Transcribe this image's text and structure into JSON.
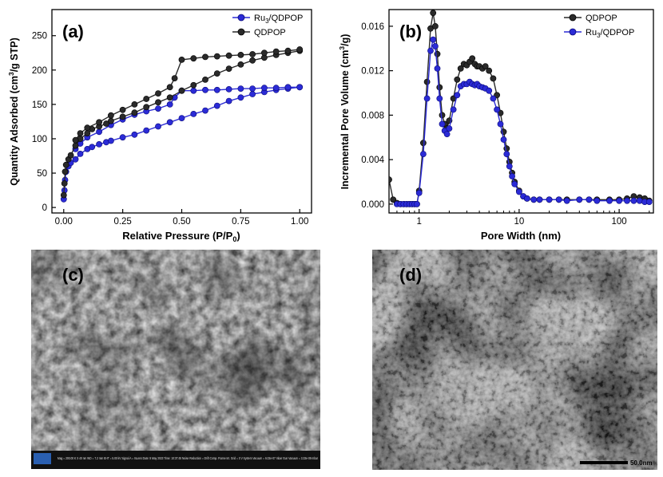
{
  "chart_data": [
    {
      "panel": "(a)",
      "type": "line",
      "xlabel_main": "Relative Pressure (P/P",
      "xlabel_sub": "0",
      "xlabel_end": ")",
      "ylabel_main": "Quantity Adsorbed (cm",
      "ylabel_sup": "3",
      "ylabel_end": "/g STP)",
      "xlim": [
        -0.05,
        1.05
      ],
      "ylim": [
        -8,
        288
      ],
      "xticks": [
        "0.00",
        "0.25",
        "0.50",
        "0.75",
        "1.00"
      ],
      "xtick_values": [
        0,
        0.25,
        0.5,
        0.75,
        1.0
      ],
      "yticks": [
        "0",
        "50",
        "100",
        "150",
        "200",
        "250"
      ],
      "ytick_values": [
        0,
        50,
        100,
        150,
        200,
        250
      ],
      "legend_position": "top-right",
      "series": [
        {
          "name_main": "Ru",
          "name_sub": "3",
          "name_end": "/QDPOP",
          "color": "#2b2bd6",
          "adsorption": [
            [
              0.0,
              12
            ],
            [
              0.003,
              25
            ],
            [
              0.006,
              40
            ],
            [
              0.01,
              52
            ],
            [
              0.02,
              60
            ],
            [
              0.03,
              65
            ],
            [
              0.05,
              70
            ],
            [
              0.07,
              78
            ],
            [
              0.1,
              85
            ],
            [
              0.12,
              88
            ],
            [
              0.15,
              92
            ],
            [
              0.18,
              95
            ],
            [
              0.2,
              97
            ],
            [
              0.25,
              102
            ],
            [
              0.3,
              106
            ],
            [
              0.35,
              112
            ],
            [
              0.4,
              118
            ],
            [
              0.45,
              124
            ],
            [
              0.5,
              130
            ],
            [
              0.55,
              136
            ],
            [
              0.6,
              141
            ],
            [
              0.65,
              148
            ],
            [
              0.7,
              155
            ],
            [
              0.75,
              160
            ],
            [
              0.8,
              165
            ],
            [
              0.85,
              168
            ],
            [
              0.9,
              171
            ],
            [
              0.95,
              173
            ],
            [
              1.0,
              175
            ]
          ],
          "desorption": [
            [
              1.0,
              175
            ],
            [
              0.95,
              175
            ],
            [
              0.9,
              174
            ],
            [
              0.85,
              174
            ],
            [
              0.8,
              173
            ],
            [
              0.75,
              173
            ],
            [
              0.7,
              172
            ],
            [
              0.65,
              171
            ],
            [
              0.6,
              171
            ],
            [
              0.55,
              170
            ],
            [
              0.5,
              170
            ],
            [
              0.47,
              160
            ],
            [
              0.45,
              150
            ],
            [
              0.4,
              144
            ],
            [
              0.35,
              140
            ],
            [
              0.3,
              135
            ],
            [
              0.25,
              128
            ],
            [
              0.2,
              120
            ],
            [
              0.15,
              110
            ],
            [
              0.1,
              102
            ],
            [
              0.07,
              93
            ],
            [
              0.05,
              85
            ]
          ]
        },
        {
          "name_main": "QDPOP",
          "name_sub": "",
          "name_end": "",
          "color": "#2a2a2a",
          "adsorption": [
            [
              0.0,
              18
            ],
            [
              0.003,
              35
            ],
            [
              0.006,
              52
            ],
            [
              0.01,
              62
            ],
            [
              0.02,
              70
            ],
            [
              0.03,
              76
            ],
            [
              0.05,
              90
            ],
            [
              0.07,
              100
            ],
            [
              0.1,
              108
            ],
            [
              0.12,
              114
            ],
            [
              0.15,
              118
            ],
            [
              0.18,
              122
            ],
            [
              0.2,
              126
            ],
            [
              0.25,
              132
            ],
            [
              0.3,
              138
            ],
            [
              0.35,
              146
            ],
            [
              0.4,
              153
            ],
            [
              0.45,
              160
            ],
            [
              0.5,
              170
            ],
            [
              0.55,
              178
            ],
            [
              0.6,
              186
            ],
            [
              0.65,
              195
            ],
            [
              0.7,
              202
            ],
            [
              0.75,
              208
            ],
            [
              0.8,
              214
            ],
            [
              0.85,
              218
            ],
            [
              0.9,
              222
            ],
            [
              0.95,
              225
            ],
            [
              1.0,
              228
            ]
          ],
          "desorption": [
            [
              1.0,
              230
            ],
            [
              0.95,
              228
            ],
            [
              0.9,
              227
            ],
            [
              0.85,
              225
            ],
            [
              0.8,
              223
            ],
            [
              0.75,
              222
            ],
            [
              0.7,
              221
            ],
            [
              0.65,
              220
            ],
            [
              0.6,
              219
            ],
            [
              0.55,
              217
            ],
            [
              0.5,
              215
            ],
            [
              0.47,
              188
            ],
            [
              0.45,
              175
            ],
            [
              0.4,
              166
            ],
            [
              0.35,
              158
            ],
            [
              0.3,
              150
            ],
            [
              0.25,
              142
            ],
            [
              0.2,
              134
            ],
            [
              0.15,
              124
            ],
            [
              0.1,
              116
            ],
            [
              0.07,
              108
            ],
            [
              0.05,
              98
            ]
          ]
        }
      ]
    },
    {
      "panel": "(b)",
      "type": "line",
      "xscale": "log",
      "xlabel": "Pore Width (nm)",
      "ylabel_main": "Incremental Pore Volume (cm",
      "ylabel_sup": "3",
      "ylabel_end": "/g)",
      "xlim": [
        0.5,
        220
      ],
      "ylim": [
        -0.0008,
        0.0175
      ],
      "xticks": [
        "1",
        "10",
        "100"
      ],
      "xtick_values": [
        1,
        10,
        100
      ],
      "yticks": [
        "0.000",
        "0.004",
        "0.008",
        "0.012",
        "0.016"
      ],
      "ytick_values": [
        0,
        0.004,
        0.008,
        0.012,
        0.016
      ],
      "legend_position": "top-right",
      "series": [
        {
          "name_main": "QDPOP",
          "name_sub": "",
          "name_end": "",
          "color": "#2a2a2a",
          "points": [
            [
              0.5,
              0.0022
            ],
            [
              0.55,
              0.0004
            ],
            [
              0.6,
              0.0001
            ],
            [
              0.65,
              0.0
            ],
            [
              0.7,
              0.0
            ],
            [
              0.75,
              0.0
            ],
            [
              0.8,
              0.0
            ],
            [
              0.85,
              0.0
            ],
            [
              0.9,
              0.0
            ],
            [
              0.95,
              0.0
            ],
            [
              1.0,
              0.0012
            ],
            [
              1.1,
              0.0055
            ],
            [
              1.2,
              0.011
            ],
            [
              1.3,
              0.0158
            ],
            [
              1.38,
              0.0172
            ],
            [
              1.45,
              0.016
            ],
            [
              1.52,
              0.0135
            ],
            [
              1.6,
              0.0105
            ],
            [
              1.7,
              0.008
            ],
            [
              1.8,
              0.0072
            ],
            [
              1.9,
              0.0068
            ],
            [
              2.0,
              0.0075
            ],
            [
              2.2,
              0.0095
            ],
            [
              2.4,
              0.0112
            ],
            [
              2.6,
              0.0122
            ],
            [
              2.8,
              0.0126
            ],
            [
              3.0,
              0.0125
            ],
            [
              3.2,
              0.0128
            ],
            [
              3.4,
              0.0131
            ],
            [
              3.6,
              0.0126
            ],
            [
              3.8,
              0.0124
            ],
            [
              4.0,
              0.0124
            ],
            [
              4.3,
              0.0122
            ],
            [
              4.6,
              0.0124
            ],
            [
              5.0,
              0.012
            ],
            [
              5.5,
              0.0113
            ],
            [
              6.0,
              0.0098
            ],
            [
              6.5,
              0.0082
            ],
            [
              7.0,
              0.0065
            ],
            [
              7.5,
              0.005
            ],
            [
              8.0,
              0.0038
            ],
            [
              8.5,
              0.0028
            ],
            [
              9.0,
              0.002
            ],
            [
              10.0,
              0.0012
            ],
            [
              11.0,
              0.0007
            ],
            [
              12.0,
              0.0005
            ],
            [
              14.0,
              0.0004
            ],
            [
              16.0,
              0.0004
            ],
            [
              20.0,
              0.0004
            ],
            [
              25.0,
              0.0004
            ],
            [
              30.0,
              0.0004
            ],
            [
              40.0,
              0.0004
            ],
            [
              50.0,
              0.0004
            ],
            [
              60.0,
              0.0004
            ],
            [
              80.0,
              0.0004
            ],
            [
              100.0,
              0.0004
            ],
            [
              120.0,
              0.0005
            ],
            [
              140.0,
              0.0007
            ],
            [
              160.0,
              0.0006
            ],
            [
              180.0,
              0.0005
            ],
            [
              200.0,
              0.0003
            ]
          ]
        },
        {
          "name_main": "Ru",
          "name_sub": "3",
          "name_end": "/QDPOP",
          "color": "#2b2bd6",
          "points": [
            [
              0.6,
              0.0
            ],
            [
              0.65,
              0.0
            ],
            [
              0.7,
              0.0
            ],
            [
              0.75,
              0.0
            ],
            [
              0.8,
              0.0
            ],
            [
              0.85,
              0.0
            ],
            [
              0.9,
              0.0
            ],
            [
              0.95,
              0.0
            ],
            [
              1.0,
              0.001
            ],
            [
              1.1,
              0.0045
            ],
            [
              1.2,
              0.0095
            ],
            [
              1.3,
              0.0138
            ],
            [
              1.38,
              0.0148
            ],
            [
              1.45,
              0.0142
            ],
            [
              1.52,
              0.0122
            ],
            [
              1.6,
              0.0095
            ],
            [
              1.7,
              0.0072
            ],
            [
              1.8,
              0.0066
            ],
            [
              1.9,
              0.0063
            ],
            [
              2.0,
              0.0068
            ],
            [
              2.2,
              0.0085
            ],
            [
              2.4,
              0.0098
            ],
            [
              2.6,
              0.0106
            ],
            [
              2.8,
              0.0108
            ],
            [
              3.0,
              0.0108
            ],
            [
              3.2,
              0.011
            ],
            [
              3.4,
              0.0108
            ],
            [
              3.6,
              0.0107
            ],
            [
              3.8,
              0.0108
            ],
            [
              4.0,
              0.0106
            ],
            [
              4.3,
              0.0105
            ],
            [
              4.6,
              0.0104
            ],
            [
              5.0,
              0.0102
            ],
            [
              5.5,
              0.0095
            ],
            [
              6.0,
              0.0085
            ],
            [
              6.5,
              0.0072
            ],
            [
              7.0,
              0.0058
            ],
            [
              7.5,
              0.0045
            ],
            [
              8.0,
              0.0034
            ],
            [
              8.5,
              0.0025
            ],
            [
              9.0,
              0.0018
            ],
            [
              10.0,
              0.0011
            ],
            [
              11.0,
              0.0007
            ],
            [
              12.0,
              0.0005
            ],
            [
              14.0,
              0.0004
            ],
            [
              16.0,
              0.0004
            ],
            [
              20.0,
              0.0004
            ],
            [
              25.0,
              0.0004
            ],
            [
              30.0,
              0.0003
            ],
            [
              40.0,
              0.0004
            ],
            [
              50.0,
              0.0004
            ],
            [
              60.0,
              0.0003
            ],
            [
              80.0,
              0.0003
            ],
            [
              100.0,
              0.0003
            ],
            [
              120.0,
              0.0003
            ],
            [
              140.0,
              0.0003
            ],
            [
              160.0,
              0.0003
            ],
            [
              180.0,
              0.0002
            ],
            [
              200.0,
              0.0002
            ]
          ]
        }
      ]
    }
  ],
  "micrographs": {
    "sem": {
      "panel_label": "(c)",
      "info_bar_text": "Mag = 200.00 K X    40 nm    WD = 7.2 mm    EHT = 5.00 kV    Signal A = InLens    Date: 8 May 2023    Time: 10:37:48    Noise Reduction = Drift Comp. Frame Int.    Grid = 0 V    System Vacuum = 6.02e-07 mbar    Gun Vacuum = 3.33e-09 mbar"
    },
    "tem": {
      "panel_label": "(d)",
      "scale_bar_label": "50.0nm"
    }
  }
}
